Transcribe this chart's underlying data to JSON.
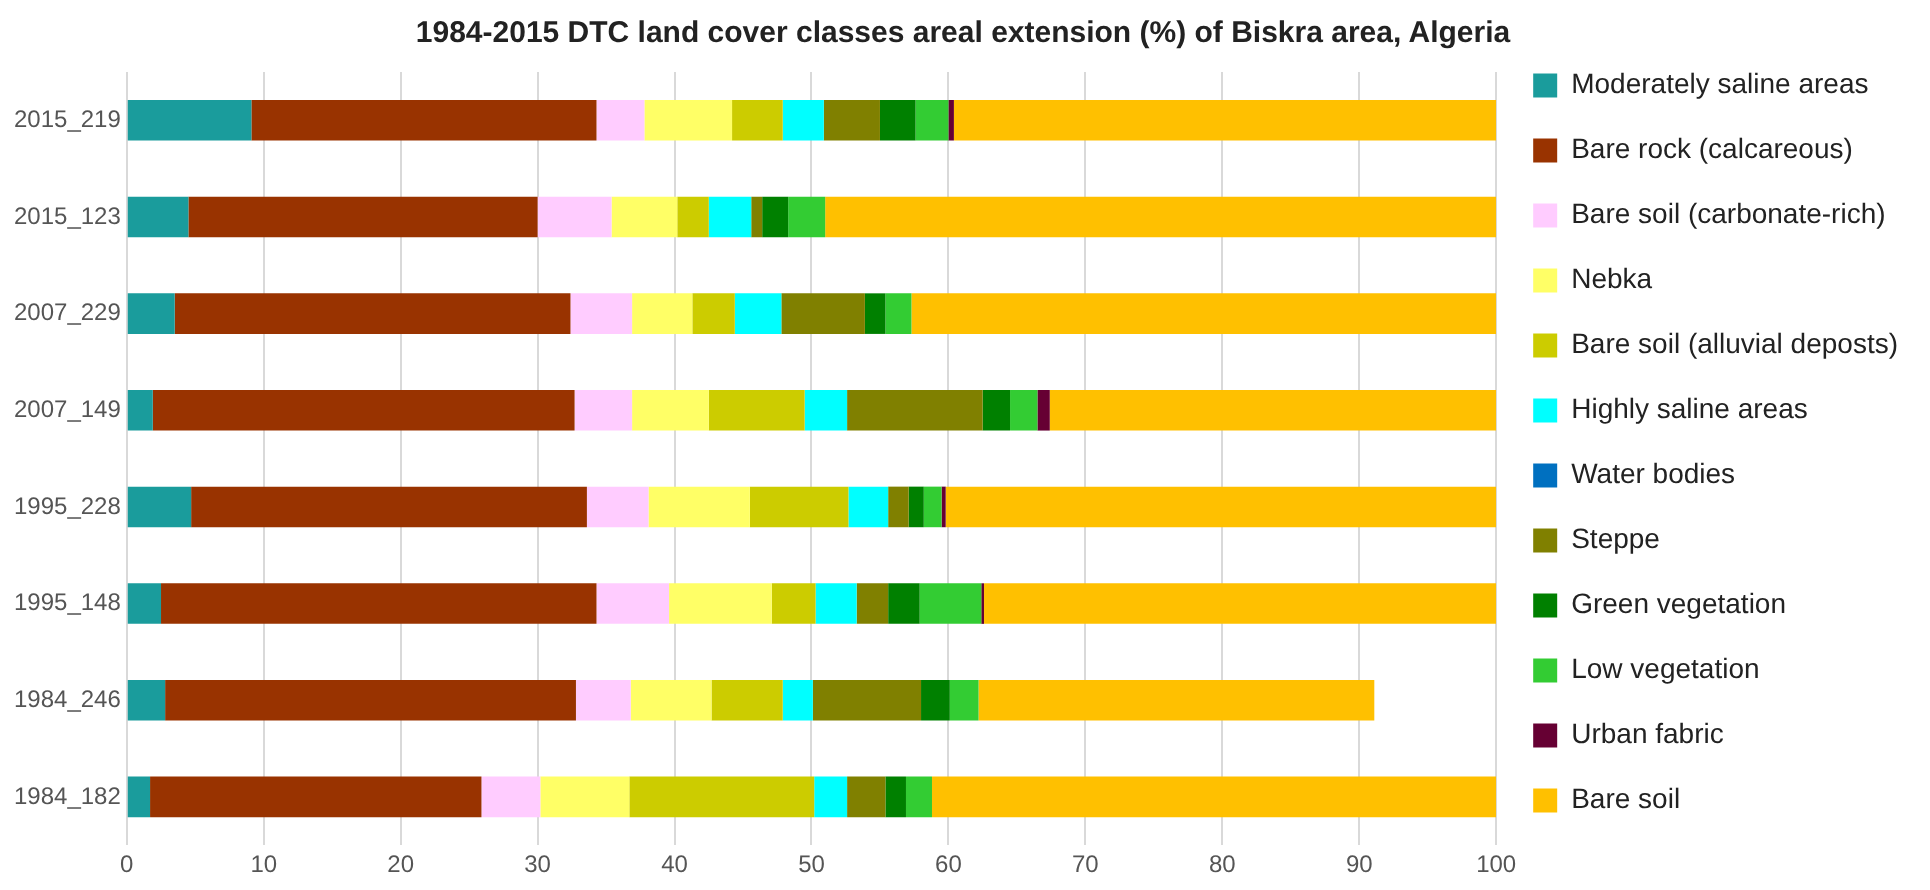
{
  "chart_data": {
    "type": "bar",
    "orientation": "horizontal",
    "stacked": true,
    "title": "1984-2015 DTC land cover classes areal extension (%) of Biskra area, Algeria",
    "categories": [
      "2015_219",
      "2015_123",
      "2007_229",
      "2007_149",
      "1995_228",
      "1995_148",
      "1984_246",
      "1984_182"
    ],
    "series": [
      {
        "name": "Moderately saline areas",
        "color": "#1a9c9c",
        "values": [
          9.1,
          4.5,
          3.5,
          1.9,
          4.7,
          2.5,
          2.8,
          1.7
        ]
      },
      {
        "name": "Bare rock (calcareous)",
        "color": "#993300",
        "values": [
          25.2,
          25.5,
          28.9,
          30.8,
          28.9,
          31.8,
          30.0,
          24.2
        ]
      },
      {
        "name": "Bare soil (carbonate-rich)",
        "color": "#ffccff",
        "values": [
          3.5,
          5.4,
          4.5,
          4.2,
          4.5,
          5.3,
          4.0,
          4.3
        ]
      },
      {
        "name": "Nebka",
        "color": "#ffff66",
        "values": [
          6.4,
          4.8,
          4.4,
          5.6,
          7.4,
          7.5,
          5.9,
          6.5
        ]
      },
      {
        "name": "Bare soil (alluvial deposts)",
        "color": "#cccc00",
        "values": [
          3.7,
          2.3,
          3.1,
          7.0,
          7.2,
          3.2,
          5.2,
          13.5
        ]
      },
      {
        "name": "Highly saline areas",
        "color": "#00ffff",
        "values": [
          3.0,
          3.1,
          3.4,
          3.1,
          2.9,
          3.0,
          2.2,
          2.4
        ]
      },
      {
        "name": "Water bodies",
        "color": "#0070c0",
        "values": [
          0,
          0,
          0,
          0,
          0,
          0,
          0,
          0
        ]
      },
      {
        "name": "Steppe",
        "color": "#808000",
        "values": [
          4.1,
          0.8,
          6.1,
          9.9,
          1.5,
          2.3,
          7.9,
          2.8
        ]
      },
      {
        "name": "Green vegetation",
        "color": "#008000",
        "values": [
          2.6,
          1.9,
          1.5,
          2.0,
          1.1,
          2.3,
          2.1,
          1.5
        ]
      },
      {
        "name": "Low vegetation",
        "color": "#33cc33",
        "values": [
          2.4,
          2.7,
          1.9,
          2.0,
          1.3,
          4.5,
          2.1,
          1.9
        ]
      },
      {
        "name": "Urban fabric",
        "color": "#660033",
        "values": [
          0.4,
          0,
          0,
          0.9,
          0.3,
          0.2,
          0,
          0
        ]
      },
      {
        "name": "Bare soil",
        "color": "#ffc000",
        "values": [
          39.6,
          49.0,
          42.7,
          32.6,
          40.2,
          37.4,
          28.9,
          41.2
        ]
      }
    ],
    "xlim": [
      0,
      100
    ],
    "xticks": [
      0,
      10,
      20,
      30,
      40,
      50,
      60,
      70,
      80,
      90,
      100
    ],
    "grid": "x",
    "legend": "right"
  }
}
